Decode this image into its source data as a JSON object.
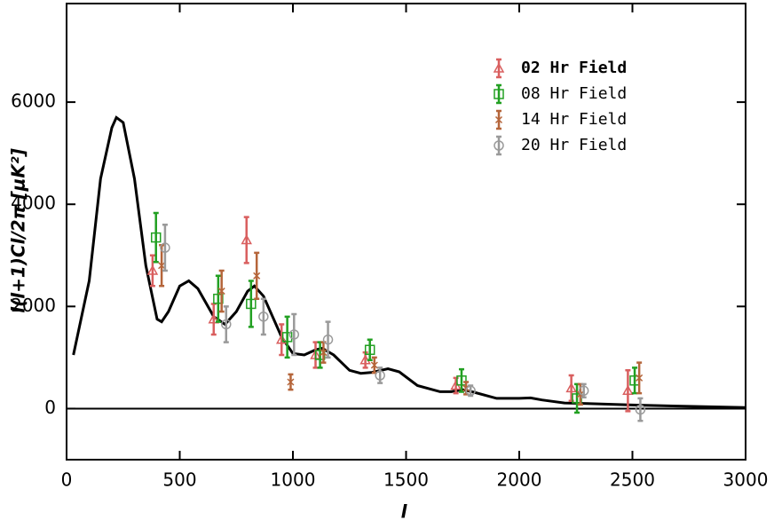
{
  "chart_data": {
    "type": "errorbar",
    "xlabel": "l",
    "ylabel": "l(l+1)Cl/2π [μK²]",
    "xlim": [
      0,
      3000
    ],
    "ylim": [
      -1000,
      7930
    ],
    "xticks": [
      0,
      500,
      1000,
      1500,
      2000,
      2500,
      3000
    ],
    "yticks": [
      0,
      2000,
      4000,
      6000
    ],
    "theory": {
      "color": "#000000",
      "x": [
        30,
        100,
        150,
        200,
        220,
        250,
        300,
        350,
        400,
        420,
        450,
        500,
        540,
        580,
        650,
        700,
        750,
        800,
        830,
        870,
        950,
        1000,
        1050,
        1100,
        1130,
        1180,
        1250,
        1300,
        1350,
        1420,
        1470,
        1550,
        1650,
        1700,
        1750,
        1800,
        1900,
        2000,
        2050,
        2100,
        2200,
        2300,
        2500,
        2700,
        3000
      ],
      "values": [
        1050,
        2500,
        4500,
        5500,
        5700,
        5600,
        4500,
        2800,
        1750,
        1700,
        1900,
        2400,
        2500,
        2350,
        1800,
        1650,
        1900,
        2300,
        2400,
        2200,
        1400,
        1080,
        1050,
        1150,
        1180,
        1050,
        750,
        690,
        710,
        780,
        720,
        450,
        330,
        330,
        370,
        320,
        200,
        200,
        210,
        170,
        110,
        100,
        70,
        50,
        20
      ]
    },
    "series": [
      {
        "name": "02 Hr Field",
        "marker": "triangle",
        "color": "#d95f5f",
        "x": [
          380,
          650,
          795,
          950,
          1100,
          1320,
          1720,
          2230,
          2480
        ],
        "values": [
          2700,
          1750,
          3300,
          1350,
          1050,
          950,
          450,
          400,
          350
        ],
        "errors": [
          300,
          300,
          450,
          300,
          250,
          150,
          150,
          250,
          400
        ]
      },
      {
        "name": "08 Hr Field",
        "marker": "square",
        "color": "#22a022",
        "x": [
          395,
          670,
          815,
          975,
          1120,
          1340,
          1745,
          2255,
          2510
        ],
        "values": [
          3350,
          2150,
          2050,
          1400,
          1050,
          1150,
          550,
          200,
          550
        ],
        "errors": [
          480,
          450,
          450,
          400,
          250,
          200,
          220,
          280,
          250
        ]
      },
      {
        "name": "14 Hr Field",
        "marker": "cross",
        "color": "#b5653a",
        "x": [
          420,
          685,
          840,
          990,
          1135,
          1360,
          1765,
          2270,
          2530
        ],
        "values": [
          2800,
          2300,
          2600,
          520,
          1100,
          850,
          400,
          280,
          600
        ],
        "errors": [
          400,
          400,
          450,
          150,
          200,
          150,
          120,
          200,
          300
        ]
      },
      {
        "name": "20 Hr Field",
        "marker": "circle",
        "color": "#9a9a9a",
        "x": [
          435,
          705,
          870,
          1005,
          1155,
          1385,
          1785,
          2285,
          2535
        ],
        "values": [
          3150,
          1650,
          1800,
          1450,
          1350,
          650,
          350,
          350,
          -20
        ],
        "errors": [
          450,
          350,
          350,
          400,
          350,
          150,
          100,
          130,
          220
        ]
      }
    ]
  }
}
